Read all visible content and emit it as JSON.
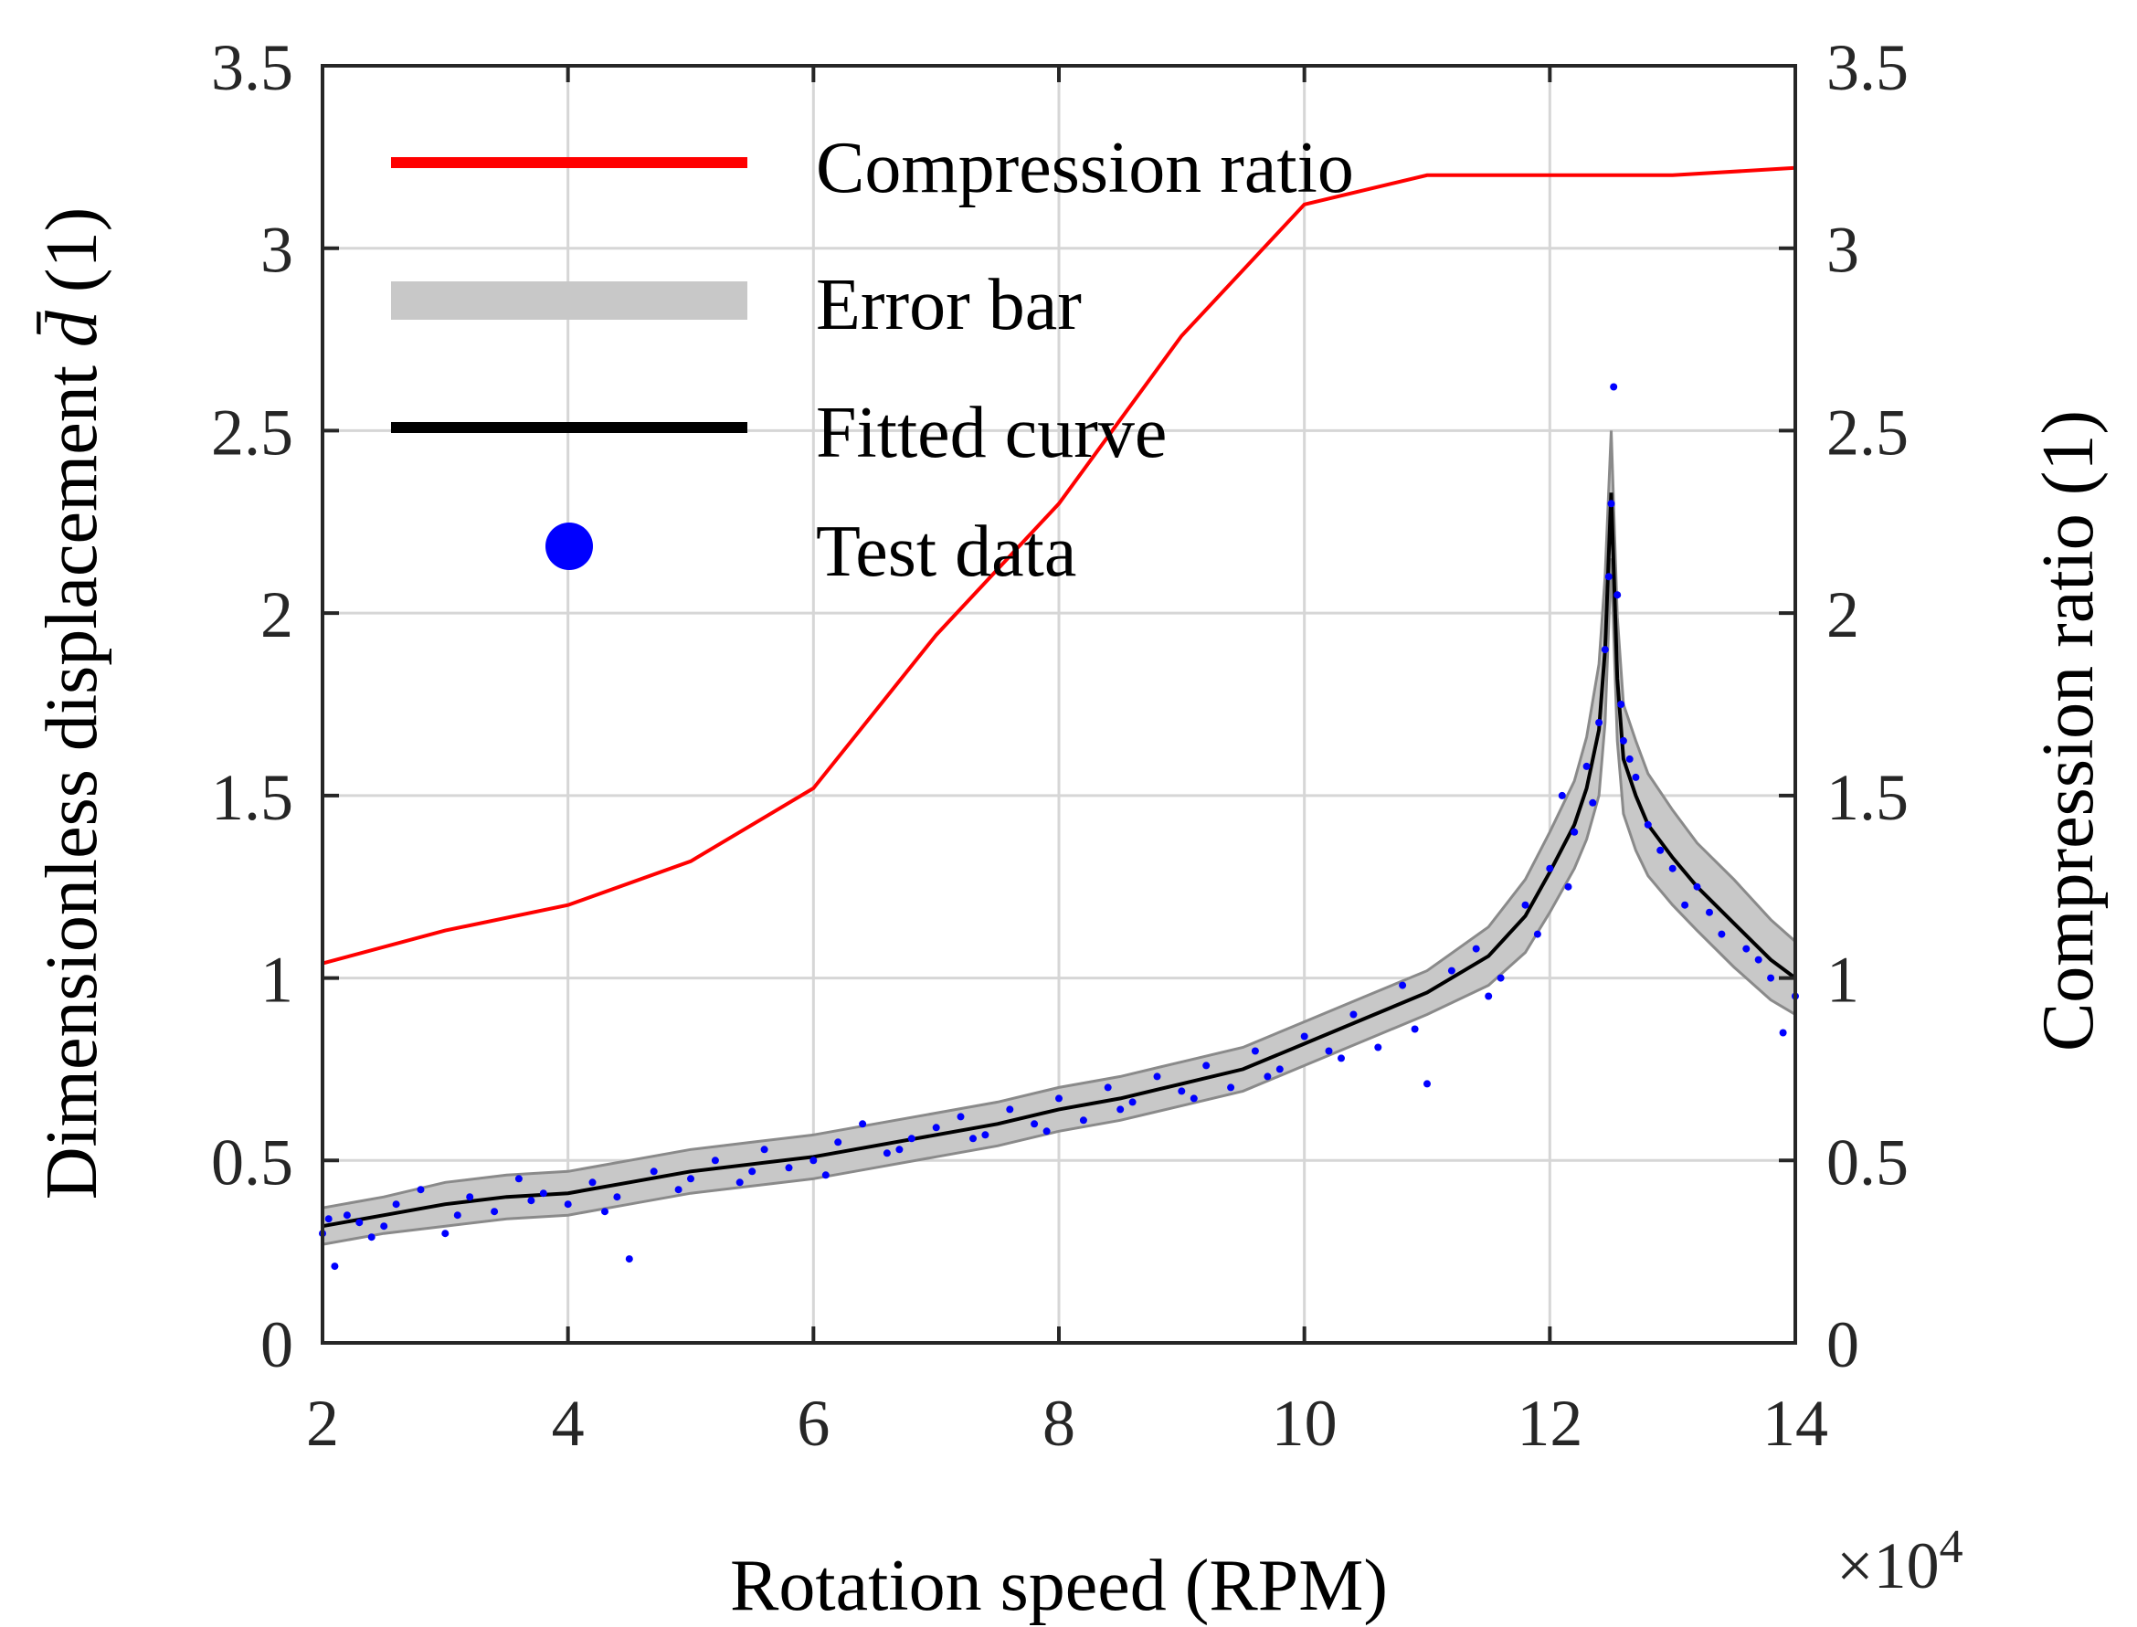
{
  "chart_data": {
    "type": "line",
    "title": "",
    "xlabel": "Rotation speed (RPM)",
    "x_multiplier_label": "×10",
    "x_multiplier_exponent": "4",
    "ylabel_left_text": "Dimensionless displacement",
    "ylabel_left_symbol": "d̄",
    "ylabel_left_unit": "(1)",
    "ylabel_right": "Compression ratio (1)",
    "xlim": [
      2,
      14
    ],
    "ylim_left": [
      0,
      3.5
    ],
    "ylim_right": [
      0,
      3.5
    ],
    "x_ticks": [
      "2",
      "4",
      "6",
      "8",
      "10",
      "12",
      "14"
    ],
    "y_ticks_left": [
      "0",
      "0.5",
      "1",
      "1.5",
      "2",
      "2.5",
      "3",
      "3.5"
    ],
    "y_ticks_right": [
      "0",
      "0.5",
      "1",
      "1.5",
      "2",
      "2.5",
      "3",
      "3.5"
    ],
    "grid": true,
    "legend_position": "top-left",
    "legend": [
      {
        "label": "Compression ratio",
        "style": "line",
        "color": "#ff0000"
      },
      {
        "label": "Error bar",
        "style": "band",
        "color": "#c8c8c8"
      },
      {
        "label": "Fitted curve",
        "style": "line",
        "color": "#000000"
      },
      {
        "label": "Test data",
        "style": "marker",
        "color": "#0000ff"
      }
    ],
    "series": [
      {
        "name": "Compression ratio",
        "axis": "right",
        "color": "#ff0000",
        "x": [
          2,
          3,
          4,
          5,
          6,
          7,
          8,
          9,
          10,
          11,
          12,
          13,
          14
        ],
        "y": [
          1.04,
          1.13,
          1.2,
          1.32,
          1.52,
          1.94,
          2.3,
          2.76,
          3.12,
          3.2,
          3.2,
          3.2,
          3.22
        ]
      },
      {
        "name": "Fitted curve",
        "axis": "left",
        "color": "#000000",
        "x": [
          2,
          2.5,
          3,
          3.5,
          4,
          4.5,
          5,
          5.5,
          6,
          6.5,
          7,
          7.5,
          8,
          8.5,
          9,
          9.5,
          10,
          10.5,
          11,
          11.5,
          11.8,
          12.0,
          12.2,
          12.3,
          12.4,
          12.45,
          12.5,
          12.55,
          12.6,
          12.7,
          12.8,
          13.0,
          13.2,
          13.5,
          13.8,
          14
        ],
        "y": [
          0.32,
          0.35,
          0.38,
          0.4,
          0.41,
          0.44,
          0.47,
          0.49,
          0.51,
          0.54,
          0.57,
          0.6,
          0.64,
          0.67,
          0.71,
          0.75,
          0.82,
          0.89,
          0.96,
          1.06,
          1.17,
          1.29,
          1.42,
          1.52,
          1.68,
          1.9,
          2.33,
          1.82,
          1.6,
          1.5,
          1.42,
          1.33,
          1.25,
          1.15,
          1.05,
          1.0
        ]
      },
      {
        "name": "Error bar",
        "axis": "left",
        "color": "#c8c8c8",
        "x": [
          2,
          2.5,
          3,
          3.5,
          4,
          4.5,
          5,
          5.5,
          6,
          6.5,
          7,
          7.5,
          8,
          8.5,
          9,
          9.5,
          10,
          10.5,
          11,
          11.5,
          11.8,
          12.0,
          12.2,
          12.3,
          12.4,
          12.45,
          12.5,
          12.55,
          12.6,
          12.7,
          12.8,
          13.0,
          13.2,
          13.5,
          13.8,
          14
        ],
        "lower": [
          0.27,
          0.3,
          0.32,
          0.34,
          0.35,
          0.38,
          0.41,
          0.43,
          0.45,
          0.48,
          0.51,
          0.54,
          0.58,
          0.61,
          0.65,
          0.69,
          0.76,
          0.83,
          0.9,
          0.98,
          1.07,
          1.18,
          1.3,
          1.38,
          1.5,
          1.7,
          2.15,
          1.65,
          1.45,
          1.35,
          1.28,
          1.2,
          1.13,
          1.03,
          0.94,
          0.9
        ],
        "upper": [
          0.37,
          0.4,
          0.44,
          0.46,
          0.47,
          0.5,
          0.53,
          0.55,
          0.57,
          0.6,
          0.63,
          0.66,
          0.7,
          0.73,
          0.77,
          0.81,
          0.88,
          0.95,
          1.02,
          1.14,
          1.27,
          1.4,
          1.54,
          1.66,
          1.86,
          2.1,
          2.5,
          1.99,
          1.75,
          1.65,
          1.56,
          1.46,
          1.37,
          1.27,
          1.16,
          1.1
        ]
      },
      {
        "name": "Test data",
        "axis": "left",
        "color": "#0000ff",
        "x": [
          2.0,
          2.1,
          2.2,
          2.3,
          2.4,
          2.6,
          2.8,
          3.0,
          3.2,
          3.4,
          3.6,
          3.8,
          4.0,
          4.2,
          4.4,
          4.5,
          4.7,
          5.0,
          5.2,
          5.4,
          5.6,
          5.8,
          6.0,
          6.2,
          6.4,
          6.6,
          6.8,
          7.0,
          7.2,
          7.4,
          7.6,
          7.8,
          8.0,
          8.2,
          8.4,
          8.6,
          8.8,
          9.0,
          9.2,
          9.4,
          9.6,
          9.8,
          10.0,
          10.2,
          10.4,
          10.6,
          10.8,
          11.0,
          11.2,
          11.4,
          11.6,
          11.8,
          11.9,
          12.0,
          12.1,
          12.2,
          12.3,
          12.4,
          12.45,
          12.5,
          12.52,
          12.55,
          12.6,
          12.7,
          12.8,
          12.9,
          13.0,
          13.1,
          13.2,
          13.4,
          13.6,
          13.8,
          13.9,
          14.0,
          2.05,
          2.5,
          3.1,
          3.7,
          4.3,
          4.9,
          5.5,
          6.1,
          6.7,
          7.3,
          7.9,
          8.5,
          9.1,
          9.7,
          10.3,
          10.9,
          11.5,
          12.15,
          12.35,
          12.48,
          12.58,
          12.65,
          13.3,
          13.7
        ],
        "y": [
          0.3,
          0.21,
          0.35,
          0.33,
          0.29,
          0.38,
          0.42,
          0.3,
          0.4,
          0.36,
          0.45,
          0.41,
          0.38,
          0.44,
          0.4,
          0.23,
          0.47,
          0.45,
          0.5,
          0.44,
          0.53,
          0.48,
          0.5,
          0.55,
          0.6,
          0.52,
          0.56,
          0.59,
          0.62,
          0.57,
          0.64,
          0.6,
          0.67,
          0.61,
          0.7,
          0.66,
          0.73,
          0.69,
          0.76,
          0.7,
          0.8,
          0.75,
          0.84,
          0.8,
          0.9,
          0.81,
          0.98,
          0.71,
          1.02,
          1.08,
          1.0,
          1.2,
          1.12,
          1.3,
          1.5,
          1.4,
          1.58,
          1.7,
          1.9,
          2.3,
          2.62,
          2.05,
          1.65,
          1.55,
          1.42,
          1.35,
          1.3,
          1.2,
          1.25,
          1.12,
          1.08,
          1.0,
          0.85,
          0.95,
          0.34,
          0.32,
          0.35,
          0.39,
          0.36,
          0.42,
          0.47,
          0.46,
          0.53,
          0.56,
          0.58,
          0.64,
          0.67,
          0.73,
          0.78,
          0.86,
          0.95,
          1.25,
          1.48,
          2.1,
          1.75,
          1.6,
          1.18,
          1.05
        ]
      }
    ]
  }
}
